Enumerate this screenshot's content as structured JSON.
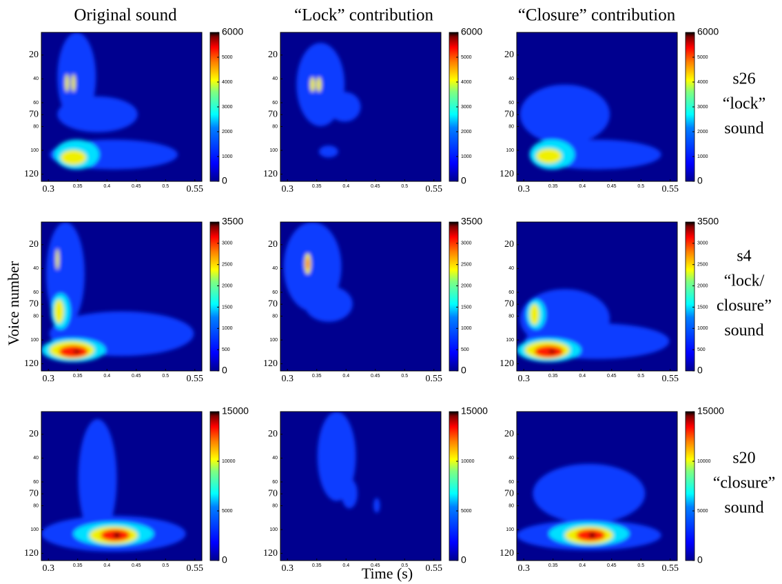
{
  "column_titles": [
    "Original sound",
    "“Lock” contribution",
    "“Closure” contribution"
  ],
  "row_labels": [
    [
      "s26",
      "“lock”",
      "sound"
    ],
    [
      "s4",
      "“lock/",
      "closure”",
      "sound"
    ],
    [
      "s20",
      "“closure”",
      "sound"
    ]
  ],
  "y_axis_label": "Voice number",
  "x_axis_label": "Time (s)",
  "chart_data": [
    {
      "type": "heatmap",
      "xlim": [
        0.288,
        0.562
      ],
      "xticks": [
        0.3,
        0.35,
        0.4,
        0.45,
        0.5,
        0.55
      ],
      "xtick_styles": [
        "major",
        "minor",
        "minor",
        "minor",
        "minor",
        "major"
      ],
      "ylim": [
        1,
        126
      ],
      "y_reversed": true,
      "yticks": [
        20,
        40,
        60,
        70,
        80,
        100,
        120
      ],
      "ytick_styles": [
        "major",
        "minor",
        "minor",
        "major",
        "minor",
        "minor",
        "major"
      ],
      "clim": [
        0,
        6000
      ],
      "cticks": [
        0,
        1000,
        2000,
        3000,
        4000,
        5000,
        6000
      ],
      "ctick_styles": [
        "major",
        "minor",
        "minor",
        "minor",
        "minor",
        "minor",
        "major"
      ]
    },
    {
      "type": "heatmap",
      "xlim": [
        0.288,
        0.562
      ],
      "xticks": [
        0.3,
        0.35,
        0.4,
        0.45,
        0.5,
        0.55
      ],
      "xtick_styles": [
        "major",
        "minor",
        "minor",
        "minor",
        "minor",
        "major"
      ],
      "ylim": [
        1,
        126
      ],
      "y_reversed": true,
      "yticks": [
        20,
        40,
        60,
        70,
        80,
        100,
        120
      ],
      "ytick_styles": [
        "major",
        "minor",
        "minor",
        "major",
        "minor",
        "minor",
        "major"
      ],
      "clim": [
        0,
        6000
      ],
      "cticks": [
        0,
        1000,
        2000,
        3000,
        4000,
        5000,
        6000
      ],
      "ctick_styles": [
        "major",
        "minor",
        "minor",
        "minor",
        "minor",
        "minor",
        "major"
      ]
    },
    {
      "type": "heatmap",
      "xlim": [
        0.288,
        0.562
      ],
      "xticks": [
        0.3,
        0.35,
        0.4,
        0.45,
        0.5,
        0.55
      ],
      "xtick_styles": [
        "major",
        "minor",
        "minor",
        "minor",
        "minor",
        "major"
      ],
      "ylim": [
        1,
        126
      ],
      "y_reversed": true,
      "yticks": [
        20,
        40,
        60,
        70,
        80,
        100,
        120
      ],
      "ytick_styles": [
        "major",
        "minor",
        "minor",
        "major",
        "minor",
        "minor",
        "major"
      ],
      "clim": [
        0,
        6000
      ],
      "cticks": [
        0,
        1000,
        2000,
        3000,
        4000,
        5000,
        6000
      ],
      "ctick_styles": [
        "major",
        "minor",
        "minor",
        "minor",
        "minor",
        "minor",
        "major"
      ]
    },
    {
      "type": "heatmap",
      "xlim": [
        0.288,
        0.562
      ],
      "xticks": [
        0.3,
        0.35,
        0.4,
        0.45,
        0.5,
        0.55
      ],
      "xtick_styles": [
        "major",
        "minor",
        "minor",
        "minor",
        "minor",
        "major"
      ],
      "ylim": [
        1,
        126
      ],
      "y_reversed": true,
      "yticks": [
        20,
        40,
        60,
        70,
        80,
        100,
        120
      ],
      "ytick_styles": [
        "major",
        "minor",
        "minor",
        "major",
        "minor",
        "minor",
        "major"
      ],
      "clim": [
        0,
        3500
      ],
      "cticks": [
        0,
        500,
        1000,
        1500,
        2000,
        2500,
        3000,
        3500
      ],
      "ctick_styles": [
        "major",
        "minor",
        "minor",
        "minor",
        "minor",
        "minor",
        "minor",
        "major"
      ]
    },
    {
      "type": "heatmap",
      "xlim": [
        0.288,
        0.562
      ],
      "xticks": [
        0.3,
        0.35,
        0.4,
        0.45,
        0.5,
        0.55
      ],
      "xtick_styles": [
        "major",
        "minor",
        "minor",
        "minor",
        "minor",
        "major"
      ],
      "ylim": [
        1,
        126
      ],
      "y_reversed": true,
      "yticks": [
        20,
        40,
        60,
        70,
        80,
        100,
        120
      ],
      "ytick_styles": [
        "major",
        "minor",
        "minor",
        "major",
        "minor",
        "minor",
        "major"
      ],
      "clim": [
        0,
        3500
      ],
      "cticks": [
        0,
        500,
        1000,
        1500,
        2000,
        2500,
        3000,
        3500
      ],
      "ctick_styles": [
        "major",
        "minor",
        "minor",
        "minor",
        "minor",
        "minor",
        "minor",
        "major"
      ]
    },
    {
      "type": "heatmap",
      "xlim": [
        0.288,
        0.562
      ],
      "xticks": [
        0.3,
        0.35,
        0.4,
        0.45,
        0.5,
        0.55
      ],
      "xtick_styles": [
        "major",
        "minor",
        "minor",
        "minor",
        "minor",
        "major"
      ],
      "ylim": [
        1,
        126
      ],
      "y_reversed": true,
      "yticks": [
        20,
        40,
        60,
        70,
        80,
        100,
        120
      ],
      "ytick_styles": [
        "major",
        "minor",
        "minor",
        "major",
        "minor",
        "minor",
        "major"
      ],
      "clim": [
        0,
        3500
      ],
      "cticks": [
        0,
        500,
        1000,
        1500,
        2000,
        2500,
        3000,
        3500
      ],
      "ctick_styles": [
        "major",
        "minor",
        "minor",
        "minor",
        "minor",
        "minor",
        "minor",
        "major"
      ]
    },
    {
      "type": "heatmap",
      "xlim": [
        0.288,
        0.562
      ],
      "xticks": [
        0.3,
        0.35,
        0.4,
        0.45,
        0.5,
        0.55
      ],
      "xtick_styles": [
        "major",
        "minor",
        "minor",
        "minor",
        "minor",
        "major"
      ],
      "ylim": [
        1,
        126
      ],
      "y_reversed": true,
      "yticks": [
        20,
        40,
        60,
        70,
        80,
        100,
        120
      ],
      "ytick_styles": [
        "major",
        "minor",
        "minor",
        "major",
        "minor",
        "minor",
        "major"
      ],
      "clim": [
        0,
        15000
      ],
      "cticks": [
        0,
        5000,
        10000,
        15000
      ],
      "ctick_styles": [
        "major",
        "minor",
        "minor",
        "major"
      ]
    },
    {
      "type": "heatmap",
      "xlim": [
        0.288,
        0.562
      ],
      "xticks": [
        0.3,
        0.35,
        0.4,
        0.45,
        0.5,
        0.55
      ],
      "xtick_styles": [
        "major",
        "minor",
        "minor",
        "minor",
        "minor",
        "major"
      ],
      "ylim": [
        1,
        126
      ],
      "y_reversed": true,
      "yticks": [
        20,
        40,
        60,
        70,
        80,
        100,
        120
      ],
      "ytick_styles": [
        "major",
        "minor",
        "minor",
        "major",
        "minor",
        "minor",
        "major"
      ],
      "clim": [
        0,
        15000
      ],
      "cticks": [
        0,
        5000,
        10000,
        15000
      ],
      "ctick_styles": [
        "major",
        "minor",
        "minor",
        "major"
      ]
    },
    {
      "type": "heatmap",
      "xlim": [
        0.288,
        0.562
      ],
      "xticks": [
        0.3,
        0.35,
        0.4,
        0.45,
        0.5,
        0.55
      ],
      "xtick_styles": [
        "major",
        "minor",
        "minor",
        "minor",
        "minor",
        "major"
      ],
      "ylim": [
        1,
        126
      ],
      "y_reversed": true,
      "yticks": [
        20,
        40,
        60,
        70,
        80,
        100,
        120
      ],
      "ytick_styles": [
        "major",
        "minor",
        "minor",
        "major",
        "minor",
        "minor",
        "major"
      ],
      "clim": [
        0,
        15000
      ],
      "cticks": [
        0,
        5000,
        10000,
        15000
      ],
      "ctick_styles": [
        "major",
        "minor",
        "minor",
        "major"
      ]
    }
  ]
}
